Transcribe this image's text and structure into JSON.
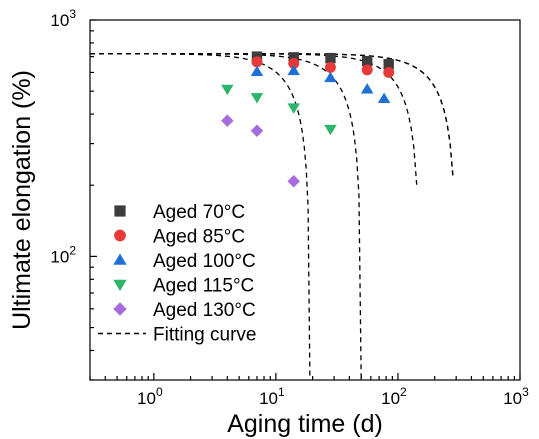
{
  "chart_data": {
    "type": "scatter",
    "title": "",
    "xlabel": "Aging time (d)",
    "ylabel": "Ultimate elongation (%)",
    "x_scale": "log",
    "y_scale": "log",
    "xlim": [
      0.3,
      1000
    ],
    "ylim": [
      30,
      1000
    ],
    "grid": false,
    "legend_position": "bottom-left",
    "x_ticks": [
      {
        "value": 1,
        "mantissa": "10",
        "exp": "0"
      },
      {
        "value": 10,
        "mantissa": "10",
        "exp": "1"
      },
      {
        "value": 100,
        "mantissa": "10",
        "exp": "2"
      },
      {
        "value": 1000,
        "mantissa": "10",
        "exp": "3"
      }
    ],
    "y_ticks": [
      {
        "value": 100,
        "mantissa": "10",
        "exp": "2"
      },
      {
        "value": 1000,
        "mantissa": "10",
        "exp": "3"
      }
    ],
    "series": [
      {
        "name": "Aged 70°C",
        "marker": "square",
        "color": "#3d3d3d",
        "points": [
          [
            7,
            700
          ],
          [
            14,
            695
          ],
          [
            28,
            690
          ],
          [
            56,
            670
          ],
          [
            84,
            650
          ]
        ]
      },
      {
        "name": "Aged 85°C",
        "marker": "circle",
        "color": "#e8393a",
        "points": [
          [
            7,
            665
          ],
          [
            14,
            655
          ],
          [
            28,
            630
          ],
          [
            56,
            615
          ],
          [
            84,
            600
          ]
        ]
      },
      {
        "name": "Aged 100°C",
        "marker": "triangle-up",
        "color": "#1f6fd6",
        "points": [
          [
            7,
            605
          ],
          [
            14,
            610
          ],
          [
            28,
            570
          ],
          [
            56,
            510
          ],
          [
            77,
            465
          ]
        ]
      },
      {
        "name": "Aged 115°C",
        "marker": "triangle-down",
        "color": "#2bb56b",
        "points": [
          [
            4,
            510
          ],
          [
            7,
            470
          ],
          [
            14,
            425
          ],
          [
            28,
            345
          ]
        ]
      },
      {
        "name": "Aged 130°C",
        "marker": "diamond",
        "color": "#a66bdc",
        "points": [
          [
            4,
            375
          ],
          [
            7,
            340
          ],
          [
            14,
            208
          ]
        ]
      }
    ],
    "fit_curve_label": "Fitting curve",
    "fit_curves": [
      {
        "y0": 720,
        "x_end": 300
      },
      {
        "y0": 720,
        "x_end": 300
      },
      {
        "y0": 720,
        "x_end": 150
      },
      {
        "y0": 720,
        "x_end": 50
      },
      {
        "y0": 720,
        "x_end": 19
      }
    ]
  }
}
